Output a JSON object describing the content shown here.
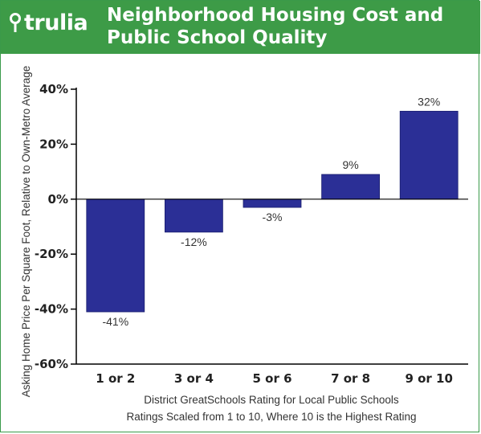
{
  "header": {
    "logo_text": "trulia",
    "title_line1": "Neighborhood Housing Cost and",
    "title_line2": "Public School Quality"
  },
  "colors": {
    "header_bg": "#3d9b47",
    "bar": "#2b2f96",
    "axis": "#000000"
  },
  "chart_data": {
    "type": "bar",
    "title": "Neighborhood Housing Cost and Public School Quality",
    "categories": [
      "1 or 2",
      "3 or 4",
      "5 or 6",
      "7 or 8",
      "9 or 10"
    ],
    "values": [
      -41,
      -12,
      -3,
      9,
      32
    ],
    "data_labels": [
      "-41%",
      "-12%",
      "-3%",
      "9%",
      "32%"
    ],
    "ylabel": "Asking Home Price Per Square Foot, Relative to Own-Metro Average",
    "xlabel_line1": "District GreatSchools Rating for Local Public Schools",
    "xlabel_line2": "Ratings Scaled from 1 to 10, Where 10 is the Highest Rating",
    "ylim": [
      -60,
      40
    ],
    "yticks": [
      40,
      20,
      0,
      -20,
      -40,
      -60
    ],
    "ytick_labels": [
      "40%",
      "20%",
      "0%",
      "-20%",
      "-40%",
      "-60%"
    ],
    "grid": false,
    "legend": "none"
  }
}
